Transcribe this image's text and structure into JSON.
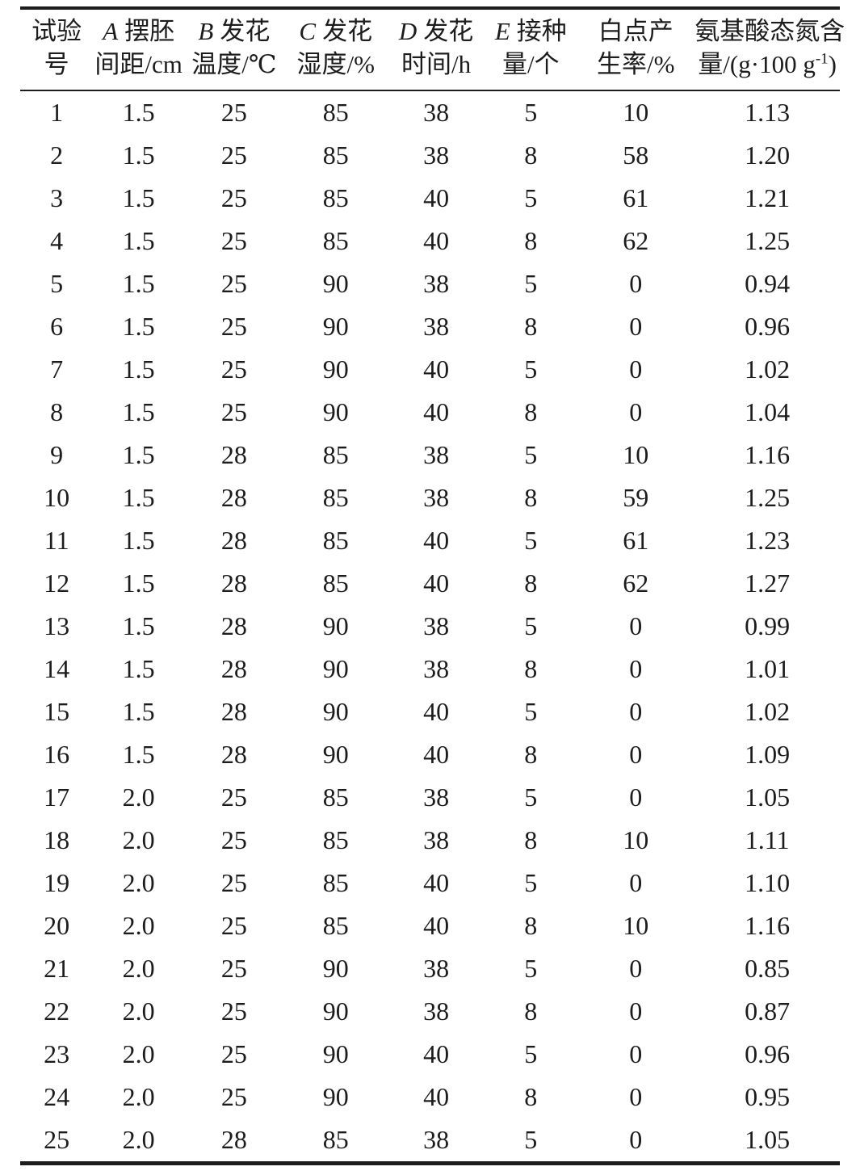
{
  "table": {
    "columns": [
      {
        "letter": "",
        "line1": "试验",
        "line2": "号"
      },
      {
        "letter": "A",
        "line1": "摆胚",
        "line2": "间距/cm"
      },
      {
        "letter": "B",
        "line1": "发花",
        "line2": "温度/℃"
      },
      {
        "letter": "C",
        "line1": "发花",
        "line2": "湿度/%"
      },
      {
        "letter": "D",
        "line1": "发花",
        "line2": "时间/h"
      },
      {
        "letter": "E",
        "line1": "接种",
        "line2": "量/个"
      },
      {
        "letter": "",
        "line1": "白点产",
        "line2": "生率/%"
      },
      {
        "letter": "",
        "line1": "氨基酸态氮含",
        "line2_pre": "量/(g·100 g",
        "line2_sup": "-1",
        "line2_post": ")"
      }
    ],
    "rows": [
      [
        "1",
        "1.5",
        "25",
        "85",
        "38",
        "5",
        "10",
        "1.13"
      ],
      [
        "2",
        "1.5",
        "25",
        "85",
        "38",
        "8",
        "58",
        "1.20"
      ],
      [
        "3",
        "1.5",
        "25",
        "85",
        "40",
        "5",
        "61",
        "1.21"
      ],
      [
        "4",
        "1.5",
        "25",
        "85",
        "40",
        "8",
        "62",
        "1.25"
      ],
      [
        "5",
        "1.5",
        "25",
        "90",
        "38",
        "5",
        "0",
        "0.94"
      ],
      [
        "6",
        "1.5",
        "25",
        "90",
        "38",
        "8",
        "0",
        "0.96"
      ],
      [
        "7",
        "1.5",
        "25",
        "90",
        "40",
        "5",
        "0",
        "1.02"
      ],
      [
        "8",
        "1.5",
        "25",
        "90",
        "40",
        "8",
        "0",
        "1.04"
      ],
      [
        "9",
        "1.5",
        "28",
        "85",
        "38",
        "5",
        "10",
        "1.16"
      ],
      [
        "10",
        "1.5",
        "28",
        "85",
        "38",
        "8",
        "59",
        "1.25"
      ],
      [
        "11",
        "1.5",
        "28",
        "85",
        "40",
        "5",
        "61",
        "1.23"
      ],
      [
        "12",
        "1.5",
        "28",
        "85",
        "40",
        "8",
        "62",
        "1.27"
      ],
      [
        "13",
        "1.5",
        "28",
        "90",
        "38",
        "5",
        "0",
        "0.99"
      ],
      [
        "14",
        "1.5",
        "28",
        "90",
        "38",
        "8",
        "0",
        "1.01"
      ],
      [
        "15",
        "1.5",
        "28",
        "90",
        "40",
        "5",
        "0",
        "1.02"
      ],
      [
        "16",
        "1.5",
        "28",
        "90",
        "40",
        "8",
        "0",
        "1.09"
      ],
      [
        "17",
        "2.0",
        "25",
        "85",
        "38",
        "5",
        "0",
        "1.05"
      ],
      [
        "18",
        "2.0",
        "25",
        "85",
        "38",
        "8",
        "10",
        "1.11"
      ],
      [
        "19",
        "2.0",
        "25",
        "85",
        "40",
        "5",
        "0",
        "1.10"
      ],
      [
        "20",
        "2.0",
        "25",
        "85",
        "40",
        "8",
        "10",
        "1.16"
      ],
      [
        "21",
        "2.0",
        "25",
        "90",
        "38",
        "5",
        "0",
        "0.85"
      ],
      [
        "22",
        "2.0",
        "25",
        "90",
        "38",
        "8",
        "0",
        "0.87"
      ],
      [
        "23",
        "2.0",
        "25",
        "90",
        "40",
        "5",
        "0",
        "0.96"
      ],
      [
        "24",
        "2.0",
        "25",
        "90",
        "40",
        "8",
        "0",
        "0.95"
      ],
      [
        "25",
        "2.0",
        "28",
        "85",
        "38",
        "5",
        "0",
        "1.05"
      ]
    ]
  },
  "colors": {
    "text": "#1c1c1c",
    "rule": "#1c1c1c",
    "background": "#ffffff"
  }
}
